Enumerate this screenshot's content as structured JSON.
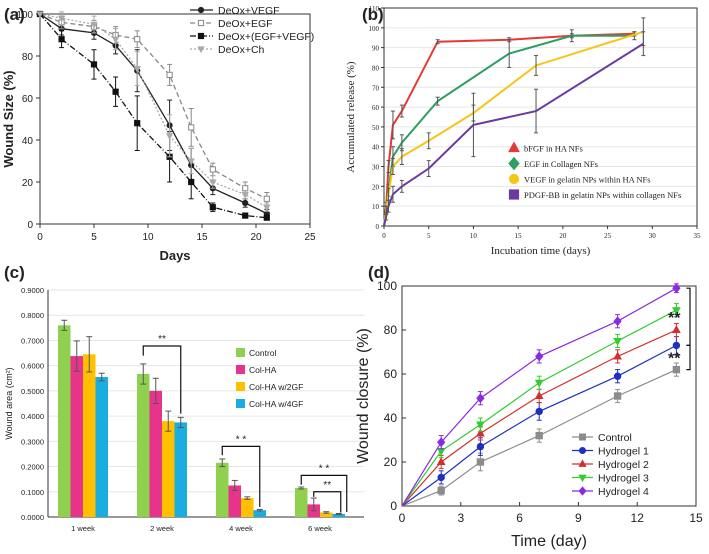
{
  "panels": {
    "a": {
      "label": "(a)"
    },
    "b": {
      "label": "(b)"
    },
    "c": {
      "label": "(c)"
    },
    "d": {
      "label": "(d)"
    }
  },
  "chart_data": [
    {
      "id": "a",
      "type": "line",
      "title": "",
      "xlabel": "Days",
      "ylabel": "Wound Size (%)",
      "xlim": [
        0,
        25
      ],
      "ylim": [
        0,
        100
      ],
      "xticks": [
        0,
        5,
        10,
        15,
        20,
        25
      ],
      "yticks": [
        0,
        20,
        40,
        60,
        80,
        100
      ],
      "legend_position": "top-right",
      "series": [
        {
          "name": "DeOx+VEGF",
          "color": "#222222",
          "marker": "circle",
          "dash": "solid",
          "x": [
            0,
            2,
            5,
            7,
            9,
            12,
            14,
            16,
            19,
            21
          ],
          "y": [
            100,
            93,
            91,
            85,
            73,
            47,
            28,
            17,
            10,
            5
          ],
          "err": [
            0,
            3,
            3,
            4,
            10,
            12,
            8,
            3,
            2,
            2
          ]
        },
        {
          "name": "DeOx+EGF",
          "color": "#888888",
          "marker": "square-open",
          "dash": "dash",
          "x": [
            0,
            2,
            5,
            7,
            9,
            12,
            14,
            16,
            19,
            21
          ],
          "y": [
            100,
            96,
            94,
            90,
            88,
            71,
            46,
            26,
            17,
            12
          ],
          "err": [
            0,
            3,
            3,
            4,
            4,
            5,
            9,
            3,
            3,
            3
          ]
        },
        {
          "name": "DeOx+(EGF+VEGF)",
          "color": "#111111",
          "marker": "square",
          "dash": "dashdot",
          "x": [
            0,
            2,
            5,
            7,
            9,
            12,
            14,
            16,
            19,
            21
          ],
          "y": [
            100,
            88,
            76,
            63,
            48,
            32,
            20,
            8,
            4,
            3
          ],
          "err": [
            0,
            4,
            7,
            7,
            13,
            12,
            8,
            2,
            1,
            1
          ]
        },
        {
          "name": "DeOx+Ch",
          "color": "#aaaaaa",
          "marker": "triangle-down",
          "dash": "dot",
          "x": [
            0,
            2,
            5,
            7,
            9,
            12,
            14,
            16,
            19,
            21
          ],
          "y": [
            100,
            98,
            95,
            88,
            74,
            42,
            30,
            20,
            14,
            8
          ],
          "err": [
            0,
            3,
            4,
            5,
            8,
            10,
            6,
            3,
            2,
            2
          ]
        }
      ]
    },
    {
      "id": "b",
      "type": "line",
      "title": "",
      "xlabel": "Incubation time (days)",
      "ylabel": "Accumulated release (%)",
      "xlim": [
        0,
        35
      ],
      "ylim": [
        0,
        110
      ],
      "xticks": [
        0,
        5,
        10,
        15,
        20,
        25,
        30,
        35
      ],
      "yticks": [
        0,
        10,
        20,
        30,
        40,
        50,
        60,
        70,
        80,
        90,
        100,
        110
      ],
      "legend_position": "bottom-right",
      "series": [
        {
          "name": "bFGF in HA NFs",
          "color": "#e53935",
          "marker": "triangle",
          "x": [
            0,
            0.25,
            0.5,
            1,
            2,
            6,
            14,
            21,
            28
          ],
          "y": [
            0,
            10,
            30,
            51,
            58,
            93,
            94,
            96,
            97
          ],
          "err": [
            0,
            2,
            3,
            7,
            3,
            1,
            1,
            1,
            1
          ]
        },
        {
          "name": "EGF in Collagen NFs",
          "color": "#2e9e62",
          "marker": "diamond",
          "x": [
            0,
            0.25,
            0.5,
            1,
            2,
            6,
            14,
            21,
            28
          ],
          "y": [
            0,
            8,
            18,
            35,
            42,
            63,
            87,
            96,
            96
          ],
          "err": [
            0,
            2,
            3,
            5,
            4,
            2,
            7,
            3,
            2
          ]
        },
        {
          "name": "VEGF in gelatin NPs within HA NFs",
          "color": "#f5c518",
          "marker": "circle",
          "x": [
            0,
            0.25,
            0.5,
            1,
            2,
            5,
            10,
            17,
            29
          ],
          "y": [
            0,
            8,
            16,
            30,
            35,
            43,
            57,
            81,
            98
          ],
          "err": [
            0,
            2,
            3,
            4,
            4,
            4,
            4,
            5,
            7
          ]
        },
        {
          "name": "PDGF-BB in gelatin NPs within collagen NFs",
          "color": "#6a3aa2",
          "marker": "square",
          "x": [
            0,
            0.25,
            0.5,
            1,
            2,
            5,
            10,
            17,
            29
          ],
          "y": [
            0,
            5,
            10,
            16,
            20,
            29,
            51,
            58,
            92
          ],
          "err": [
            0,
            2,
            3,
            4,
            3,
            4,
            16,
            11,
            6
          ]
        }
      ]
    },
    {
      "id": "c",
      "type": "bar",
      "title": "",
      "xlabel": "",
      "ylabel": "Wound area (cm²)",
      "ylim": [
        0,
        0.9
      ],
      "yticks": [
        "0.0000",
        "0.1000",
        "0.2000",
        "0.3000",
        "0.4000",
        "0.5000",
        "0.6000",
        "0.7000",
        "0.8000",
        "0.9000"
      ],
      "categories": [
        "1 week",
        "2 week",
        "4 week",
        "6 week"
      ],
      "legend_position": "right",
      "significance_labels": [
        "**",
        "* *",
        "* *",
        "**"
      ],
      "series": [
        {
          "name": "Control",
          "color": "#8fd14f",
          "values": [
            0.76,
            0.567,
            0.215,
            0.115
          ],
          "err": [
            0.02,
            0.04,
            0.015,
            0.004
          ]
        },
        {
          "name": "Col-HA",
          "color": "#e6348a",
          "values": [
            0.638,
            0.5,
            0.125,
            0.05
          ],
          "err": [
            0.06,
            0.05,
            0.02,
            0.025
          ]
        },
        {
          "name": "Col-HA w/2GF",
          "color": "#ffc000",
          "values": [
            0.645,
            0.38,
            0.075,
            0.018
          ],
          "err": [
            0.07,
            0.04,
            0.005,
            0.003
          ]
        },
        {
          "name": "Col-HA w/4GF",
          "color": "#1aaee0",
          "values": [
            0.555,
            0.375,
            0.027,
            0.012
          ],
          "err": [
            0.015,
            0.02,
            0.003,
            0.002
          ]
        }
      ]
    },
    {
      "id": "d",
      "type": "line",
      "title": "",
      "xlabel": "Time (day)",
      "ylabel": "Wound closure (%)",
      "xlim": [
        0,
        15
      ],
      "ylim": [
        0,
        100
      ],
      "xticks": [
        0,
        3,
        6,
        9,
        12,
        15
      ],
      "yticks": [
        0,
        20,
        40,
        60,
        80,
        100
      ],
      "legend_position": "bottom-right",
      "significance_labels": [
        "**",
        "**"
      ],
      "series": [
        {
          "name": "Control",
          "color": "#8c8c8c",
          "marker": "square",
          "x": [
            0,
            2,
            4,
            7,
            11,
            14
          ],
          "y": [
            0,
            7,
            20,
            32,
            50,
            62
          ],
          "err": [
            0,
            2,
            4,
            3,
            3,
            3
          ]
        },
        {
          "name": "Hydrogel 1",
          "color": "#1f2fbf",
          "marker": "circle",
          "x": [
            0,
            2,
            4,
            7,
            11,
            14
          ],
          "y": [
            0,
            13,
            27,
            43,
            59,
            73
          ],
          "err": [
            0,
            3,
            4,
            4,
            3,
            4
          ]
        },
        {
          "name": "Hydrogel 2",
          "color": "#d32f2f",
          "marker": "triangle",
          "x": [
            0,
            2,
            4,
            7,
            11,
            14
          ],
          "y": [
            0,
            20,
            33,
            50,
            68,
            80
          ],
          "err": [
            0,
            3,
            3,
            3,
            3,
            3
          ]
        },
        {
          "name": "Hydrogel 3",
          "color": "#33cc33",
          "marker": "triangle-down",
          "x": [
            0,
            2,
            4,
            7,
            11,
            14
          ],
          "y": [
            0,
            25,
            37,
            56,
            75,
            89
          ],
          "err": [
            0,
            3,
            3,
            3,
            3,
            3
          ]
        },
        {
          "name": "Hydrogel 4",
          "color": "#8a2be2",
          "marker": "diamond",
          "x": [
            0,
            2,
            4,
            7,
            11,
            14
          ],
          "y": [
            0,
            29,
            49,
            68,
            84,
            99
          ],
          "err": [
            0,
            3,
            3,
            3,
            3,
            2
          ]
        }
      ]
    }
  ]
}
